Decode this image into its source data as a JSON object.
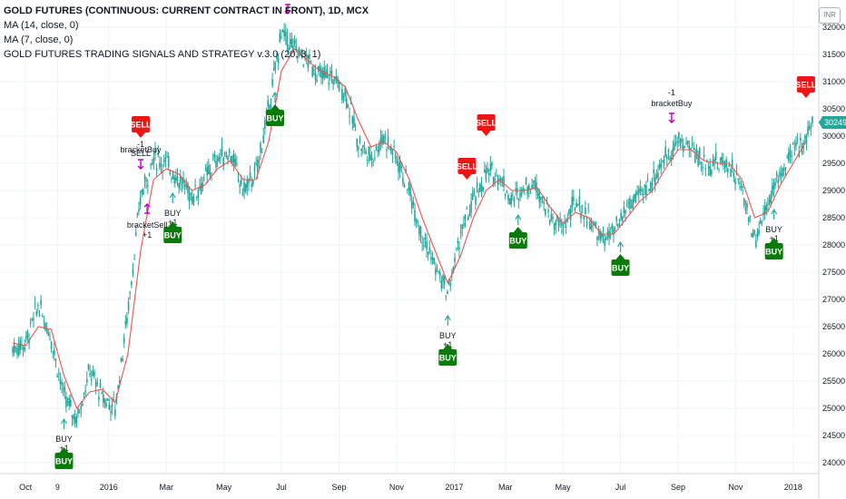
{
  "legend": {
    "title": "GOLD FUTURES (CONTINUOUS: CURRENT CONTRACT IN FRONT), 1D, MCX",
    "ma14": "MA (14, close, 0)",
    "ma7": "MA (7, close, 0)",
    "strategy": "GOLD FUTURES TRADING SIGNALS AND STRATEGY v.3.0 (20, 3, 1)"
  },
  "currency_label": "INR",
  "colors": {
    "candle": "#26a69a",
    "ma": "#ef5350",
    "buy": "#0a7a0a",
    "sell": "#f01414",
    "bracket": "#c000c0",
    "price_tag": "#26a69a",
    "grid": "#f0f3fa"
  },
  "chart_data": {
    "type": "line",
    "title": "GOLD FUTURES (CONTINUOUS: CURRENT CONTRACT IN FRONT), 1D, MCX",
    "ylim": [
      23800,
      32500
    ],
    "grid": true,
    "last_price": "30249",
    "y_ticks": [
      "24000",
      "24500",
      "25000",
      "25500",
      "26000",
      "26500",
      "27000",
      "27500",
      "28000",
      "28500",
      "29000",
      "29500",
      "30000",
      "30500",
      "31000",
      "31500",
      "32000"
    ],
    "x_ticks": [
      {
        "t": 0.0,
        "label": "Oct"
      },
      {
        "t": 2.5,
        "label": "9"
      },
      {
        "t": 6.5,
        "label": "2016"
      },
      {
        "t": 11.0,
        "label": "Mar"
      },
      {
        "t": 15.5,
        "label": "May"
      },
      {
        "t": 20.0,
        "label": "Jul"
      },
      {
        "t": 24.5,
        "label": "Sep"
      },
      {
        "t": 29.0,
        "label": "Nov"
      },
      {
        "t": 33.5,
        "label": "2017"
      },
      {
        "t": 37.5,
        "label": "Mar"
      },
      {
        "t": 42.0,
        "label": "May"
      },
      {
        "t": 46.5,
        "label": "Jul"
      },
      {
        "t": 51.0,
        "label": "Sep"
      },
      {
        "t": 55.5,
        "label": "Nov"
      },
      {
        "t": 60.0,
        "label": "2018"
      }
    ],
    "series": [
      {
        "name": "Price",
        "x": [
          -1,
          0,
          1,
          2,
          3,
          4,
          5,
          6,
          7,
          8,
          9,
          10,
          11,
          12,
          13,
          14,
          15,
          16,
          17,
          18,
          19,
          20,
          21,
          22,
          23,
          24,
          25,
          26,
          27,
          28,
          29,
          30,
          31,
          32,
          33,
          34,
          35,
          36,
          37,
          38,
          39,
          40,
          41,
          42,
          43,
          44,
          45,
          46,
          47,
          48,
          49,
          50,
          51,
          52,
          53,
          54,
          55,
          56,
          57,
          58,
          59,
          60,
          61,
          61.5
        ],
        "values": [
          26100,
          26200,
          26900,
          26300,
          25200,
          24800,
          25700,
          25200,
          25000,
          26800,
          28900,
          29600,
          29500,
          29200,
          28900,
          29200,
          29600,
          29700,
          29000,
          29300,
          30500,
          31900,
          31600,
          31400,
          31100,
          31100,
          30800,
          29900,
          29600,
          30000,
          29600,
          29000,
          28200,
          27600,
          27100,
          28200,
          28800,
          29300,
          29300,
          28800,
          29100,
          29100,
          28500,
          28300,
          28800,
          28500,
          28100,
          28200,
          28700,
          28900,
          29200,
          29600,
          29900,
          29800,
          29500,
          29500,
          29500,
          29000,
          28100,
          28800,
          29300,
          29700,
          30000,
          30249
        ]
      },
      {
        "name": "MA",
        "x": [
          -1,
          0,
          1,
          2,
          3,
          4,
          5,
          6,
          7,
          8,
          9,
          10,
          11,
          12,
          13,
          14,
          15,
          16,
          17,
          18,
          19,
          20,
          21,
          22,
          23,
          24,
          25,
          26,
          27,
          28,
          29,
          30,
          31,
          32,
          33,
          34,
          35,
          36,
          37,
          38,
          39,
          40,
          41,
          42,
          43,
          44,
          45,
          46,
          47,
          48,
          49,
          50,
          51,
          52,
          53,
          54,
          55,
          56,
          57,
          58,
          59,
          60,
          61
        ],
        "values": [
          26200,
          26150,
          26500,
          26450,
          25600,
          25000,
          25300,
          25350,
          25100,
          26000,
          27900,
          29200,
          29400,
          29300,
          29000,
          29100,
          29400,
          29550,
          29200,
          29200,
          29900,
          31200,
          31600,
          31400,
          31200,
          31100,
          30900,
          30300,
          29800,
          29900,
          29700,
          29200,
          28500,
          27900,
          27300,
          27800,
          28500,
          29000,
          29200,
          29000,
          29000,
          29050,
          28700,
          28400,
          28600,
          28500,
          28200,
          28200,
          28500,
          28800,
          29000,
          29400,
          29750,
          29750,
          29550,
          29500,
          29500,
          29200,
          28500,
          28600,
          29100,
          29500,
          29900
        ]
      }
    ],
    "annotations": [
      {
        "kind": "buy",
        "t": 3.0,
        "label": "BUY",
        "sig": "BUY",
        "sig2": "+1"
      },
      {
        "kind": "buy",
        "t": 11.5,
        "label": "BUY",
        "sig": "BUY",
        "sig2": "+1"
      },
      {
        "kind": "buy",
        "t": 19.5,
        "label": "BUY"
      },
      {
        "kind": "buy",
        "t": 33.0,
        "label": "BUY",
        "sig": "BUY",
        "sig2": "+1"
      },
      {
        "kind": "buy",
        "t": 38.5,
        "label": "BUY"
      },
      {
        "kind": "buy",
        "t": 46.5,
        "label": "BUY"
      },
      {
        "kind": "buy",
        "t": 58.5,
        "label": "BUY",
        "sig": "BUY",
        "sig2": "+1"
      },
      {
        "kind": "sell",
        "t": 9.0,
        "label": "SELL",
        "sig": "SELL",
        "sig2": "-1"
      },
      {
        "kind": "sell",
        "t": 34.5,
        "label": "SELL"
      },
      {
        "kind": "sell",
        "t": 36.0,
        "label": "SELL"
      },
      {
        "kind": "sell",
        "t": 61.0,
        "label": "SELL"
      }
    ],
    "bracket_labels": [
      {
        "t": 9.0,
        "text": "bracketBuy",
        "pos": "above"
      },
      {
        "t": 9.5,
        "text": "bracketSell",
        "pos": "below",
        "sub": "+1"
      },
      {
        "t": 20.5,
        "text": "bracketBuy",
        "pos": "above"
      },
      {
        "t": 50.5,
        "text": "bracketBuy",
        "pos": "above",
        "pre": "-1"
      }
    ]
  }
}
